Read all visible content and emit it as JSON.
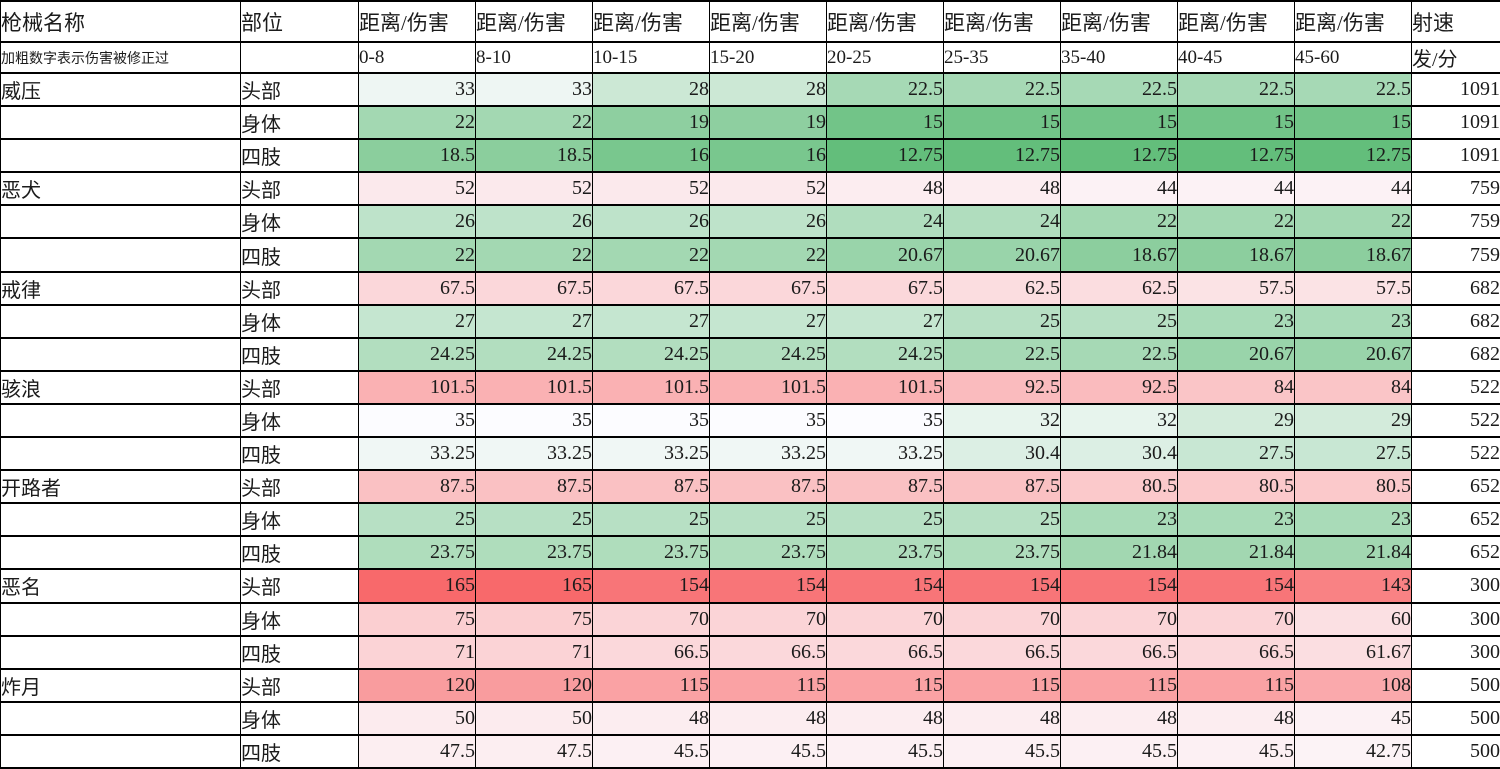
{
  "table": {
    "columns": {
      "weapon": "枪械名称",
      "part": "部位",
      "damage_header": "距离/伤害",
      "rate": "射速"
    },
    "note": "加粗数字表示伤害被修正过",
    "ranges": [
      "0-8",
      "8-10",
      "10-15",
      "15-20",
      "20-25",
      "25-35",
      "35-40",
      "40-45",
      "45-60"
    ],
    "rate_unit": "发/分",
    "color_scale": {
      "low": "#63BE7B",
      "mid": "#FCFCFF",
      "high": "#F8696B"
    },
    "weapons": [
      {
        "name": "威压",
        "rate": 1091,
        "rows": [
          {
            "part": "头部",
            "values": [
              33,
              33,
              28,
              28,
              22.5,
              22.5,
              22.5,
              22.5,
              22.5
            ]
          },
          {
            "part": "身体",
            "values": [
              22,
              22,
              19,
              19,
              15,
              15,
              15,
              15,
              15
            ]
          },
          {
            "part": "四肢",
            "values": [
              18.5,
              18.5,
              16,
              16,
              12.75,
              12.75,
              12.75,
              12.75,
              12.75
            ]
          }
        ]
      },
      {
        "name": "恶犬",
        "rate": 759,
        "rows": [
          {
            "part": "头部",
            "values": [
              52,
              52,
              52,
              52,
              48,
              48,
              44,
              44,
              44
            ]
          },
          {
            "part": "身体",
            "values": [
              26,
              26,
              26,
              26,
              24,
              24,
              22,
              22,
              22
            ]
          },
          {
            "part": "四肢",
            "values": [
              22,
              22,
              22,
              22,
              20.67,
              20.67,
              18.67,
              18.67,
              18.67
            ]
          }
        ]
      },
      {
        "name": "戒律",
        "rate": 682,
        "rows": [
          {
            "part": "头部",
            "values": [
              67.5,
              67.5,
              67.5,
              67.5,
              67.5,
              62.5,
              62.5,
              57.5,
              57.5
            ]
          },
          {
            "part": "身体",
            "values": [
              27,
              27,
              27,
              27,
              27,
              25,
              25,
              23,
              23
            ]
          },
          {
            "part": "四肢",
            "values": [
              24.25,
              24.25,
              24.25,
              24.25,
              24.25,
              22.5,
              22.5,
              20.67,
              20.67
            ]
          }
        ]
      },
      {
        "name": "骇浪",
        "rate": 522,
        "rows": [
          {
            "part": "头部",
            "values": [
              101.5,
              101.5,
              101.5,
              101.5,
              101.5,
              92.5,
              92.5,
              84,
              84
            ]
          },
          {
            "part": "身体",
            "values": [
              35,
              35,
              35,
              35,
              35,
              32,
              32,
              29,
              29
            ]
          },
          {
            "part": "四肢",
            "values": [
              33.25,
              33.25,
              33.25,
              33.25,
              33.25,
              30.4,
              30.4,
              27.5,
              27.5
            ]
          }
        ]
      },
      {
        "name": "开路者",
        "rate": 652,
        "rows": [
          {
            "part": "头部",
            "values": [
              87.5,
              87.5,
              87.5,
              87.5,
              87.5,
              87.5,
              80.5,
              80.5,
              80.5
            ]
          },
          {
            "part": "身体",
            "values": [
              25,
              25,
              25,
              25,
              25,
              25,
              23,
              23,
              23
            ]
          },
          {
            "part": "四肢",
            "values": [
              23.75,
              23.75,
              23.75,
              23.75,
              23.75,
              23.75,
              21.84,
              21.84,
              21.84
            ]
          }
        ]
      },
      {
        "name": "恶名",
        "rate": 300,
        "rows": [
          {
            "part": "头部",
            "values": [
              165,
              165,
              154,
              154,
              154,
              154,
              154,
              154,
              143
            ]
          },
          {
            "part": "身体",
            "values": [
              75,
              75,
              70,
              70,
              70,
              70,
              70,
              70,
              60
            ]
          },
          {
            "part": "四肢",
            "values": [
              71,
              71,
              66.5,
              66.5,
              66.5,
              66.5,
              66.5,
              66.5,
              61.67
            ]
          }
        ]
      },
      {
        "name": "炸月",
        "rate": 500,
        "rows": [
          {
            "part": "头部",
            "values": [
              120,
              120,
              115,
              115,
              115,
              115,
              115,
              115,
              108
            ]
          },
          {
            "part": "身体",
            "values": [
              50,
              50,
              48,
              48,
              48,
              48,
              48,
              48,
              45
            ]
          },
          {
            "part": "四肢",
            "values": [
              47.5,
              47.5,
              45.5,
              45.5,
              45.5,
              45.5,
              45.5,
              45.5,
              42.75
            ]
          }
        ]
      }
    ]
  }
}
